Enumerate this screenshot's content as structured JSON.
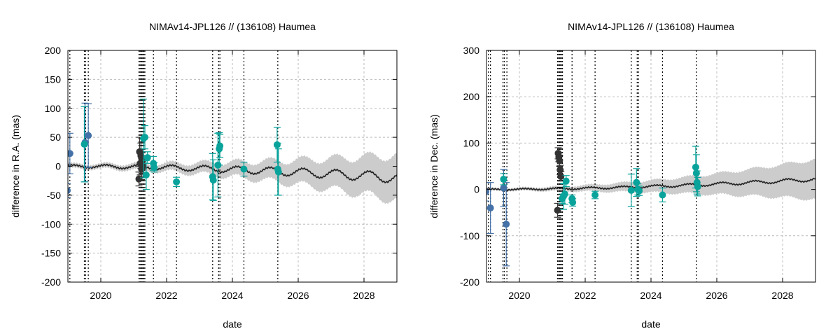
{
  "chart_data": [
    {
      "type": "scatter",
      "title": "NIMAv14-JPL126 // (136108) Haumea",
      "xlabel": "date",
      "ylabel": "difference in R.A. (mas)",
      "xlim": [
        2019,
        2029
      ],
      "ylim": [
        -200,
        200
      ],
      "xticks": [
        2020,
        2022,
        2024,
        2026,
        2028
      ],
      "xtick_labels": [
        "2020",
        "2022",
        "2024",
        "2026",
        "2028"
      ],
      "yticks": [
        -200,
        -150,
        -100,
        -50,
        0,
        50,
        100,
        150,
        200
      ],
      "ytick_labels": [
        "-200",
        "-150",
        "-100",
        "-50",
        "0",
        "50",
        "100",
        "150",
        "200"
      ],
      "grid": true,
      "colors": {
        "blue": "#4472a8",
        "dark": "#333333",
        "teal": "#0aa39b",
        "band": "#cccccc",
        "curve": "#222222"
      },
      "epoch_lines": [
        2019.06,
        2019.5,
        2019.54,
        2019.62,
        2021.16,
        2021.19,
        2021.22,
        2021.25,
        2021.28,
        2021.31,
        2021.34,
        2021.6,
        2022.3,
        2023.4,
        2023.58,
        2023.62,
        2024.35,
        2025.38
      ],
      "model": {
        "offset": 0,
        "drift": -20,
        "amp0": 2,
        "amp_growth": 0.7,
        "band0": 4,
        "band_growth": 0.35
      },
      "series": [
        {
          "name": "blue",
          "color": "#4472a8",
          "points": [
            {
              "x": 2018.98,
              "y": -42,
              "err": 12
            },
            {
              "x": 2019.06,
              "y": 22,
              "err": 35
            },
            {
              "x": 2019.52,
              "y": 41,
              "err": 68
            },
            {
              "x": 2019.62,
              "y": 53,
              "err": 55
            }
          ]
        },
        {
          "name": "dark",
          "color": "#333333",
          "points": [
            {
              "x": 2021.16,
              "y": -22,
              "err": 12
            },
            {
              "x": 2021.18,
              "y": 25,
              "err": 25
            },
            {
              "x": 2021.2,
              "y": 5,
              "err": 20
            },
            {
              "x": 2021.22,
              "y": 18,
              "err": 22
            },
            {
              "x": 2021.24,
              "y": -5,
              "err": 18
            },
            {
              "x": 2021.26,
              "y": 10,
              "err": 15
            },
            {
              "x": 2021.28,
              "y": 0,
              "err": 12
            }
          ]
        },
        {
          "name": "teal",
          "color": "#0aa39b",
          "points": [
            {
              "x": 2019.5,
              "y": 38,
              "err": 65
            },
            {
              "x": 2021.3,
              "y": 48,
              "err": 68
            },
            {
              "x": 2021.34,
              "y": 50,
              "err": 20
            },
            {
              "x": 2021.38,
              "y": -15,
              "err": 25
            },
            {
              "x": 2021.42,
              "y": 15,
              "err": 10
            },
            {
              "x": 2021.6,
              "y": 5,
              "err": 12
            },
            {
              "x": 2021.62,
              "y": -2,
              "err": 8
            },
            {
              "x": 2022.3,
              "y": -27,
              "err": 8
            },
            {
              "x": 2023.4,
              "y": -18,
              "err": 40
            },
            {
              "x": 2023.42,
              "y": -24,
              "err": 35
            },
            {
              "x": 2023.56,
              "y": 2,
              "err": 55
            },
            {
              "x": 2023.6,
              "y": 30,
              "err": 28
            },
            {
              "x": 2023.62,
              "y": 35,
              "err": 20
            },
            {
              "x": 2024.35,
              "y": -5,
              "err": 12
            },
            {
              "x": 2025.36,
              "y": 37,
              "err": 30
            },
            {
              "x": 2025.38,
              "y": -5,
              "err": 45
            },
            {
              "x": 2025.4,
              "y": -10,
              "err": 40
            }
          ]
        }
      ]
    },
    {
      "type": "scatter",
      "title": "NIMAv14-JPL126 // (136108) Haumea",
      "xlabel": "date",
      "ylabel": "difference in Dec. (mas)",
      "xlim": [
        2019,
        2029
      ],
      "ylim": [
        -200,
        300
      ],
      "xticks": [
        2020,
        2022,
        2024,
        2026,
        2028
      ],
      "xtick_labels": [
        "2020",
        "2022",
        "2024",
        "2026",
        "2028"
      ],
      "yticks": [
        -200,
        -100,
        0,
        100,
        200,
        300
      ],
      "ytick_labels": [
        "-200",
        "-100",
        "0",
        "100",
        "200",
        "300"
      ],
      "grid": true,
      "colors": {
        "blue": "#4472a8",
        "dark": "#333333",
        "teal": "#0aa39b",
        "band": "#cccccc",
        "curve": "#222222"
      },
      "epoch_lines": [
        2019.06,
        2019.12,
        2019.5,
        2019.54,
        2019.62,
        2021.16,
        2021.19,
        2021.22,
        2021.25,
        2021.28,
        2021.31,
        2021.6,
        2022.3,
        2023.4,
        2023.58,
        2023.62,
        2024.35,
        2025.38
      ],
      "model": {
        "offset": 0,
        "drift": 22,
        "amp0": 1,
        "amp_growth": 0.3,
        "band0": 3,
        "band_growth": 0.4
      },
      "series": [
        {
          "name": "blue",
          "color": "#4472a8",
          "points": [
            {
              "x": 2018.98,
              "y": -5,
              "err": 20
            },
            {
              "x": 2019.12,
              "y": -40,
              "err": 55
            },
            {
              "x": 2019.52,
              "y": 3,
              "err": 40
            },
            {
              "x": 2019.6,
              "y": -75,
              "err": 90
            }
          ]
        },
        {
          "name": "dark",
          "color": "#333333",
          "points": [
            {
              "x": 2021.16,
              "y": -45,
              "err": 15
            },
            {
              "x": 2021.18,
              "y": 78,
              "err": 12
            },
            {
              "x": 2021.2,
              "y": 70,
              "err": 10
            },
            {
              "x": 2021.22,
              "y": 62,
              "err": 12
            },
            {
              "x": 2021.24,
              "y": 42,
              "err": 10
            },
            {
              "x": 2021.26,
              "y": 28,
              "err": 10
            }
          ]
        },
        {
          "name": "teal",
          "color": "#0aa39b",
          "points": [
            {
              "x": 2019.52,
              "y": 22,
              "err": 12
            },
            {
              "x": 2021.3,
              "y": -20,
              "err": 10
            },
            {
              "x": 2021.34,
              "y": -15,
              "err": 28
            },
            {
              "x": 2021.38,
              "y": -10,
              "err": 22
            },
            {
              "x": 2021.42,
              "y": 18,
              "err": 12
            },
            {
              "x": 2021.6,
              "y": -20,
              "err": 8
            },
            {
              "x": 2021.62,
              "y": -28,
              "err": 8
            },
            {
              "x": 2022.3,
              "y": -12,
              "err": 8
            },
            {
              "x": 2023.4,
              "y": -2,
              "err": 35
            },
            {
              "x": 2023.56,
              "y": 15,
              "err": 30
            },
            {
              "x": 2023.6,
              "y": 0,
              "err": 12
            },
            {
              "x": 2023.64,
              "y": -3,
              "err": 10
            },
            {
              "x": 2024.35,
              "y": -12,
              "err": 15
            },
            {
              "x": 2025.36,
              "y": 48,
              "err": 45
            },
            {
              "x": 2025.38,
              "y": 35,
              "err": 40
            },
            {
              "x": 2025.4,
              "y": 15,
              "err": 25
            },
            {
              "x": 2025.42,
              "y": 6,
              "err": 20
            }
          ]
        }
      ]
    }
  ]
}
